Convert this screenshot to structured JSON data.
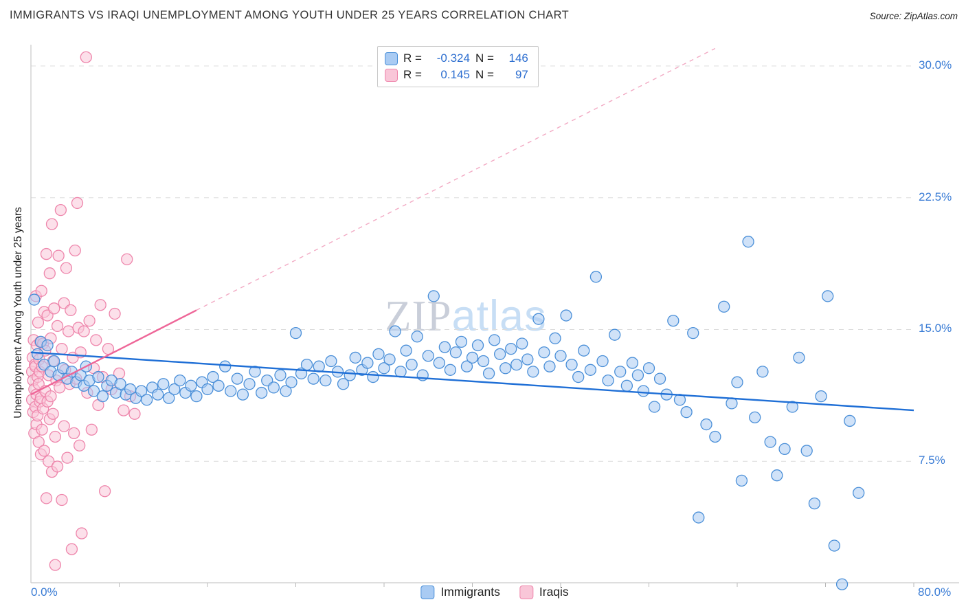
{
  "header": {
    "title": "IMMIGRANTS VS IRAQI UNEMPLOYMENT AMONG YOUTH UNDER 25 YEARS CORRELATION CHART",
    "source": "Source: ZipAtlas.com"
  },
  "watermark": {
    "zip": "ZIP",
    "atlas": "atlas"
  },
  "axes": {
    "y_label": "Unemployment Among Youth under 25 years",
    "y_ticks": [
      "30.0%",
      "22.5%",
      "15.0%",
      "7.5%"
    ],
    "x_min_label": "0.0%",
    "x_max_label": "80.0%"
  },
  "legend_box": {
    "series": [
      {
        "r_label": "R =",
        "r_value": "-0.324",
        "n_label": "N =",
        "n_value": "146"
      },
      {
        "r_label": "R =",
        "r_value": "0.145",
        "n_label": "N =",
        "n_value": "97"
      }
    ]
  },
  "bottom_legend": [
    {
      "label": "Immigrants"
    },
    {
      "label": "Iraqis"
    }
  ],
  "chart_data": {
    "type": "scatter",
    "title": "IMMIGRANTS VS IRAQI UNEMPLOYMENT AMONG YOUTH UNDER 25 YEARS CORRELATION CHART",
    "xlabel": "",
    "ylabel": "Unemployment Among Youth under 25 years",
    "xlim": [
      0,
      80
    ],
    "ylim": [
      0,
      31.2
    ],
    "x_tick_step": 8,
    "y_gridlines": [
      7.5,
      15,
      22.5,
      30
    ],
    "grid": "horizontal-dashed",
    "legend_position": "top-center",
    "series": [
      {
        "name": "Immigrants",
        "R": -0.324,
        "N": 146,
        "fill": "#a9cbf3",
        "stroke": "#4a8fd8",
        "points": [
          [
            0.3,
            16.7
          ],
          [
            0.6,
            13.6
          ],
          [
            0.9,
            14.3
          ],
          [
            1.2,
            13.0
          ],
          [
            1.5,
            14.1
          ],
          [
            1.8,
            12.6
          ],
          [
            2.1,
            13.2
          ],
          [
            2.5,
            12.4
          ],
          [
            2.9,
            12.8
          ],
          [
            3.3,
            12.2
          ],
          [
            3.7,
            12.6
          ],
          [
            4.1,
            12.0
          ],
          [
            4.5,
            12.4
          ],
          [
            4.8,
            11.8
          ],
          [
            5.0,
            12.9
          ],
          [
            5.3,
            12.1
          ],
          [
            5.7,
            11.5
          ],
          [
            6.1,
            12.3
          ],
          [
            6.5,
            11.2
          ],
          [
            6.9,
            11.8
          ],
          [
            7.3,
            12.1
          ],
          [
            7.7,
            11.4
          ],
          [
            8.1,
            11.9
          ],
          [
            8.6,
            11.3
          ],
          [
            9.0,
            11.6
          ],
          [
            9.5,
            11.1
          ],
          [
            10.0,
            11.5
          ],
          [
            10.5,
            11.0
          ],
          [
            11.0,
            11.7
          ],
          [
            11.5,
            11.3
          ],
          [
            12.0,
            11.9
          ],
          [
            12.5,
            11.1
          ],
          [
            13.0,
            11.6
          ],
          [
            13.5,
            12.1
          ],
          [
            14.0,
            11.4
          ],
          [
            14.5,
            11.8
          ],
          [
            15.0,
            11.2
          ],
          [
            15.5,
            12.0
          ],
          [
            16.0,
            11.6
          ],
          [
            16.5,
            12.3
          ],
          [
            17.0,
            11.8
          ],
          [
            17.6,
            12.9
          ],
          [
            18.1,
            11.5
          ],
          [
            18.7,
            12.2
          ],
          [
            19.2,
            11.3
          ],
          [
            19.8,
            11.9
          ],
          [
            20.3,
            12.6
          ],
          [
            20.9,
            11.4
          ],
          [
            21.4,
            12.1
          ],
          [
            22.0,
            11.7
          ],
          [
            22.6,
            12.4
          ],
          [
            23.1,
            11.5
          ],
          [
            23.6,
            12.0
          ],
          [
            24.0,
            14.8
          ],
          [
            24.5,
            12.5
          ],
          [
            25.0,
            13.0
          ],
          [
            25.6,
            12.2
          ],
          [
            26.1,
            12.9
          ],
          [
            26.7,
            12.1
          ],
          [
            27.2,
            13.2
          ],
          [
            27.8,
            12.6
          ],
          [
            28.3,
            11.9
          ],
          [
            28.9,
            12.4
          ],
          [
            29.4,
            13.4
          ],
          [
            30.0,
            12.7
          ],
          [
            30.5,
            13.1
          ],
          [
            31.0,
            12.3
          ],
          [
            31.5,
            13.6
          ],
          [
            32.0,
            12.8
          ],
          [
            32.5,
            13.3
          ],
          [
            33.0,
            14.9
          ],
          [
            33.5,
            12.6
          ],
          [
            34.0,
            13.8
          ],
          [
            34.5,
            13.0
          ],
          [
            35.0,
            14.6
          ],
          [
            35.5,
            12.4
          ],
          [
            36.0,
            13.5
          ],
          [
            36.5,
            16.9
          ],
          [
            37.0,
            13.1
          ],
          [
            37.5,
            14.0
          ],
          [
            38.0,
            12.7
          ],
          [
            38.5,
            13.7
          ],
          [
            39.0,
            14.3
          ],
          [
            39.5,
            12.9
          ],
          [
            40.0,
            13.4
          ],
          [
            40.5,
            14.1
          ],
          [
            41.0,
            13.2
          ],
          [
            41.5,
            12.5
          ],
          [
            42.0,
            14.4
          ],
          [
            42.5,
            13.6
          ],
          [
            43.0,
            12.8
          ],
          [
            43.5,
            13.9
          ],
          [
            44.0,
            13.0
          ],
          [
            44.5,
            14.2
          ],
          [
            45.0,
            13.3
          ],
          [
            45.5,
            12.6
          ],
          [
            46.0,
            15.6
          ],
          [
            46.5,
            13.7
          ],
          [
            47.0,
            12.9
          ],
          [
            47.5,
            14.5
          ],
          [
            48.0,
            13.5
          ],
          [
            48.5,
            15.8
          ],
          [
            49.0,
            13.0
          ],
          [
            49.6,
            12.3
          ],
          [
            50.1,
            13.8
          ],
          [
            50.7,
            12.7
          ],
          [
            51.2,
            18.0
          ],
          [
            51.8,
            13.2
          ],
          [
            52.3,
            12.1
          ],
          [
            52.9,
            14.7
          ],
          [
            53.4,
            12.6
          ],
          [
            54.0,
            11.8
          ],
          [
            54.5,
            13.1
          ],
          [
            55.0,
            12.4
          ],
          [
            55.5,
            11.5
          ],
          [
            56.0,
            12.8
          ],
          [
            56.5,
            10.6
          ],
          [
            57.0,
            12.2
          ],
          [
            57.6,
            11.3
          ],
          [
            58.2,
            15.5
          ],
          [
            58.8,
            11.0
          ],
          [
            59.4,
            10.3
          ],
          [
            60.0,
            14.8
          ],
          [
            60.5,
            4.3
          ],
          [
            61.2,
            9.6
          ],
          [
            62.0,
            8.9
          ],
          [
            62.8,
            16.3
          ],
          [
            63.5,
            10.8
          ],
          [
            64.0,
            12.0
          ],
          [
            64.4,
            6.4
          ],
          [
            65.0,
            20.0
          ],
          [
            65.6,
            10.0
          ],
          [
            66.3,
            12.6
          ],
          [
            67.0,
            8.6
          ],
          [
            67.6,
            6.7
          ],
          [
            68.3,
            8.2
          ],
          [
            69.0,
            10.6
          ],
          [
            69.6,
            13.4
          ],
          [
            70.3,
            8.1
          ],
          [
            71.0,
            5.1
          ],
          [
            71.6,
            11.2
          ],
          [
            72.2,
            16.9
          ],
          [
            72.8,
            2.7
          ],
          [
            73.5,
            0.5
          ],
          [
            74.2,
            9.8
          ],
          [
            75.0,
            5.7
          ]
        ]
      },
      {
        "name": "Iraqis",
        "R": 0.145,
        "N": 97,
        "fill": "#f9c6d8",
        "stroke": "#ee85ab",
        "points": [
          [
            0.1,
            12.6
          ],
          [
            0.1,
            11.0
          ],
          [
            0.15,
            13.4
          ],
          [
            0.2,
            10.3
          ],
          [
            0.2,
            12.1
          ],
          [
            0.25,
            14.4
          ],
          [
            0.3,
            9.1
          ],
          [
            0.3,
            11.6
          ],
          [
            0.35,
            13.0
          ],
          [
            0.4,
            10.6
          ],
          [
            0.4,
            12.9
          ],
          [
            0.45,
            16.9
          ],
          [
            0.5,
            9.6
          ],
          [
            0.5,
            11.3
          ],
          [
            0.55,
            14.1
          ],
          [
            0.6,
            10.1
          ],
          [
            0.6,
            12.3
          ],
          [
            0.65,
            15.4
          ],
          [
            0.7,
            8.6
          ],
          [
            0.7,
            11.9
          ],
          [
            0.75,
            13.3
          ],
          [
            0.8,
            10.9
          ],
          [
            0.8,
            12.6
          ],
          [
            0.85,
            14.3
          ],
          [
            0.9,
            7.9
          ],
          [
            0.9,
            11.1
          ],
          [
            0.95,
            17.2
          ],
          [
            1.0,
            9.3
          ],
          [
            1.0,
            12.9
          ],
          [
            1.1,
            10.5
          ],
          [
            1.1,
            14.2
          ],
          [
            1.2,
            8.1
          ],
          [
            1.2,
            16.0
          ],
          [
            1.3,
            11.5
          ],
          [
            1.3,
            13.8
          ],
          [
            1.4,
            5.4
          ],
          [
            1.4,
            19.3
          ],
          [
            1.5,
            10.9
          ],
          [
            1.5,
            15.8
          ],
          [
            1.6,
            7.5
          ],
          [
            1.6,
            12.4
          ],
          [
            1.7,
            9.9
          ],
          [
            1.7,
            18.2
          ],
          [
            1.8,
            11.2
          ],
          [
            1.8,
            14.5
          ],
          [
            1.9,
            6.9
          ],
          [
            1.9,
            21.0
          ],
          [
            2.0,
            10.2
          ],
          [
            2.0,
            13.2
          ],
          [
            2.1,
            16.2
          ],
          [
            2.2,
            1.6
          ],
          [
            2.2,
            8.9
          ],
          [
            2.3,
            12.1
          ],
          [
            2.4,
            15.2
          ],
          [
            2.4,
            7.2
          ],
          [
            2.5,
            19.2
          ],
          [
            2.6,
            11.7
          ],
          [
            2.7,
            21.8
          ],
          [
            2.8,
            13.9
          ],
          [
            2.8,
            5.3
          ],
          [
            3.0,
            16.5
          ],
          [
            3.0,
            9.5
          ],
          [
            3.1,
            12.7
          ],
          [
            3.2,
            18.5
          ],
          [
            3.3,
            7.7
          ],
          [
            3.4,
            14.9
          ],
          [
            3.5,
            11.9
          ],
          [
            3.6,
            16.1
          ],
          [
            3.7,
            2.5
          ],
          [
            3.8,
            13.4
          ],
          [
            3.9,
            9.1
          ],
          [
            4.0,
            19.5
          ],
          [
            4.1,
            12.2
          ],
          [
            4.2,
            22.2
          ],
          [
            4.3,
            15.1
          ],
          [
            4.4,
            8.4
          ],
          [
            4.5,
            13.7
          ],
          [
            4.6,
            3.4
          ],
          [
            4.8,
            14.9
          ],
          [
            5.0,
            30.5
          ],
          [
            5.1,
            11.4
          ],
          [
            5.3,
            15.5
          ],
          [
            5.5,
            9.3
          ],
          [
            5.7,
            12.8
          ],
          [
            5.9,
            14.4
          ],
          [
            6.1,
            10.7
          ],
          [
            6.3,
            16.4
          ],
          [
            6.5,
            12.3
          ],
          [
            6.7,
            5.8
          ],
          [
            7.0,
            13.9
          ],
          [
            7.3,
            11.6
          ],
          [
            7.6,
            15.9
          ],
          [
            8.0,
            12.5
          ],
          [
            8.4,
            10.4
          ],
          [
            8.7,
            19.0
          ],
          [
            9.0,
            11.2
          ],
          [
            9.4,
            10.2
          ]
        ]
      }
    ],
    "trend_lines": [
      {
        "series": "Immigrants",
        "style": "solid",
        "color": "#1f6fd6",
        "x1": 0,
        "y1": 13.7,
        "x2": 80,
        "y2": 10.4
      },
      {
        "series": "Iraqis",
        "style": "solid",
        "color": "#ee6698",
        "x1": 0,
        "y1": 11.3,
        "x2": 15,
        "y2": 16.1
      },
      {
        "series": "Iraqis",
        "style": "dashed",
        "color": "#f2a9c3",
        "x1": 15,
        "y1": 16.1,
        "x2": 62,
        "y2": 31.0
      }
    ]
  }
}
